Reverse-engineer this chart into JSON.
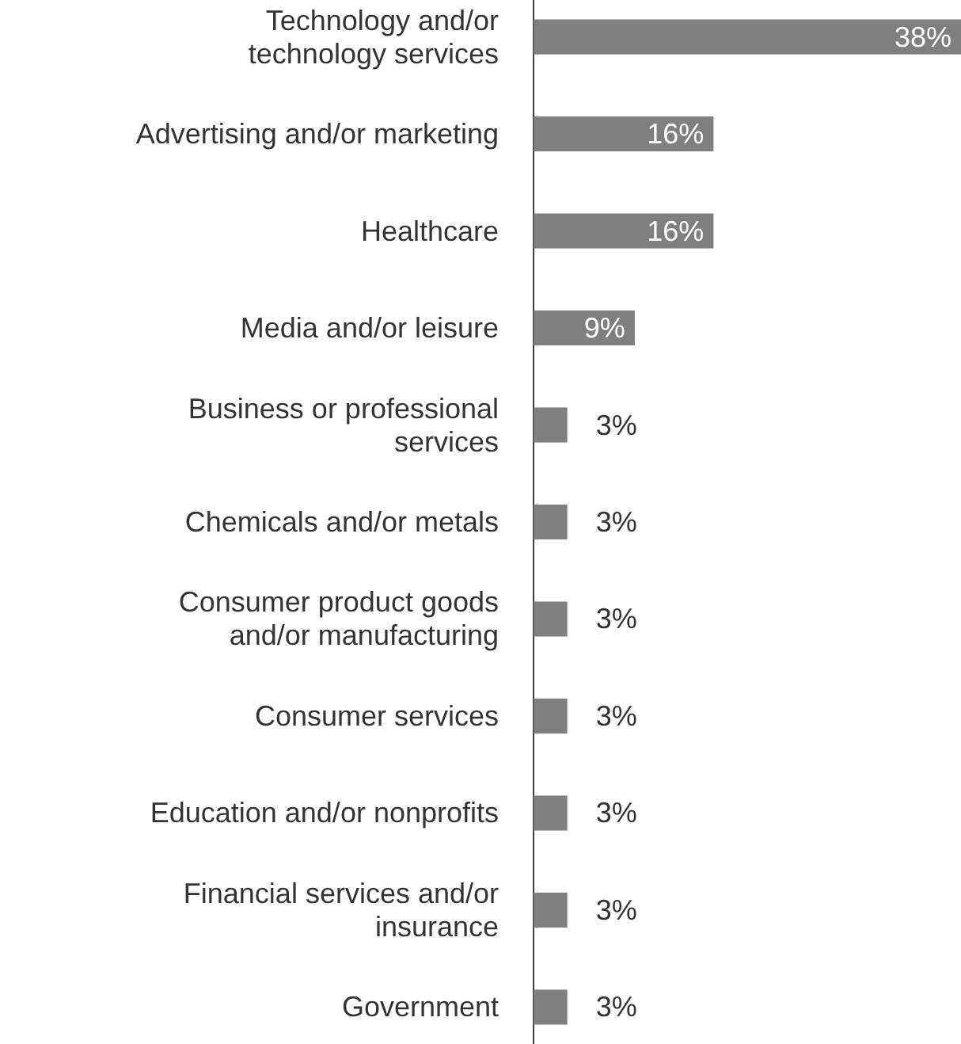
{
  "chart_data": {
    "type": "bar",
    "orientation": "horizontal",
    "categories": [
      "Technology and/or\ntechnology services",
      "Advertising and/or marketing",
      "Healthcare",
      "Media and/or leisure",
      "Business or professional\nservices",
      "Chemicals and/or metals",
      "Consumer product goods\nand/or manufacturing",
      "Consumer services",
      "Education and/or nonprofits",
      "Financial services and/or\ninsurance",
      "Government"
    ],
    "values": [
      38,
      16,
      16,
      9,
      3,
      3,
      3,
      3,
      3,
      3,
      3
    ],
    "value_labels": [
      "38%",
      "16%",
      "16%",
      "9%",
      "3%",
      "3%",
      "3%",
      "3%",
      "3%",
      "3%",
      "3%"
    ],
    "color": "#7f7f7f"
  }
}
